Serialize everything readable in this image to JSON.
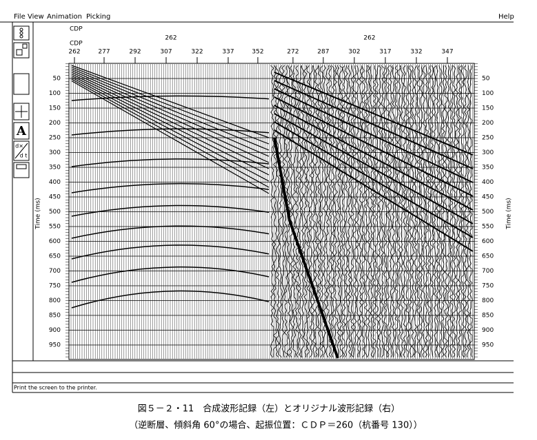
{
  "menu": {
    "items": [
      "File",
      "View",
      "Animation",
      "Picking"
    ],
    "help": "Help"
  },
  "toolbar": {
    "text_tool": "A",
    "derivative_top": "d×",
    "derivative_bottom": "d t"
  },
  "header": {
    "cdp_top": "CDP",
    "cdp_left_value": "262",
    "cdp_right_value": "262",
    "cdp_bottom": "CDP",
    "trace_labels": [
      "262",
      "277",
      "292",
      "307",
      "322",
      "337",
      "352",
      "272",
      "287",
      "302",
      "317",
      "332",
      "347"
    ]
  },
  "axis": {
    "label": "Time (ms)",
    "ticks": [
      "50",
      "100",
      "150",
      "200",
      "250",
      "300",
      "350",
      "400",
      "450",
      "500",
      "550",
      "600",
      "650",
      "700",
      "750",
      "800",
      "850",
      "900",
      "950"
    ]
  },
  "status": {
    "text": "Print the screen to the printer."
  },
  "caption": {
    "line1": "図５－２・11　合成波形記録（左）とオリジナル波形記録（右）",
    "line2": "（逆断層、傾斜角 60°の場合、起振位置：ＣＤＰ＝260（杭番号 130））"
  }
}
